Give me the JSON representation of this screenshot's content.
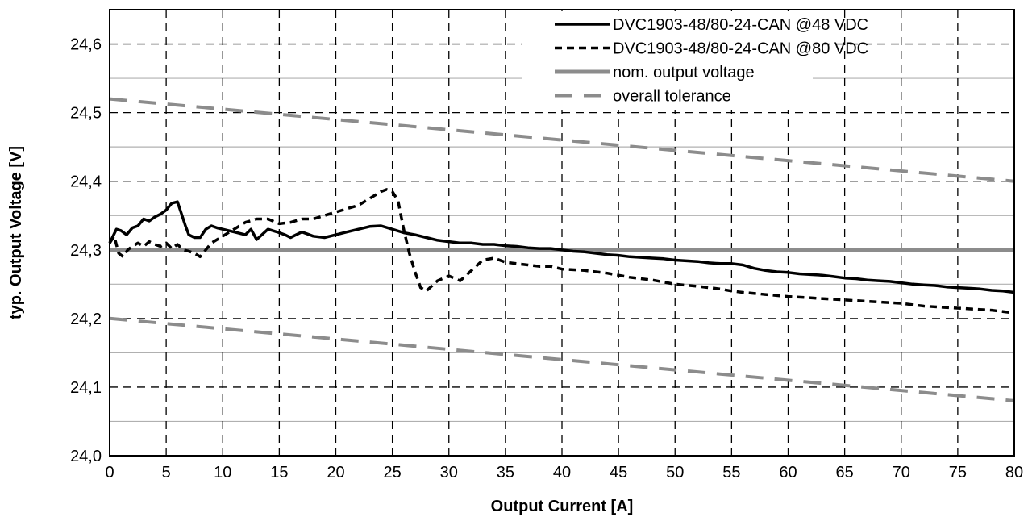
{
  "chart_data": {
    "type": "line",
    "xlabel": "Output Current [A]",
    "ylabel": "typ. Output Voltage [V]",
    "xlim": [
      0,
      80
    ],
    "ylim": [
      24.0,
      24.65
    ],
    "x_ticks": [
      0,
      5,
      10,
      15,
      20,
      25,
      30,
      35,
      40,
      45,
      50,
      55,
      60,
      65,
      70,
      75,
      80
    ],
    "x_tick_labels": [
      "0",
      "5",
      "10",
      "15",
      "20",
      "25",
      "30",
      "35",
      "40",
      "45",
      "50",
      "55",
      "60",
      "65",
      "70",
      "75",
      "80"
    ],
    "y_ticks": [
      24.0,
      24.1,
      24.2,
      24.3,
      24.4,
      24.5,
      24.6
    ],
    "y_tick_labels": [
      "24,0",
      "24,1",
      "24,2",
      "24,3",
      "24,4",
      "24,5",
      "24,6"
    ],
    "grid": {
      "vertical": "dashed",
      "horizontal_major": "dashed",
      "horizontal_minor": "solid-light",
      "y_minor_step": 0.05
    },
    "legend_position": "top-right",
    "series": [
      {
        "name": "DVC1903-48/80-24-CAN @48 VDC",
        "style": "solid",
        "color": "#000000",
        "x": [
          0,
          0.3,
          0.6,
          1,
          1.5,
          2,
          2.5,
          3,
          3.5,
          4,
          4.5,
          5,
          5.5,
          6,
          6.3,
          6.7,
          7,
          7.5,
          8,
          8.5,
          9,
          9.5,
          10,
          11,
          12,
          12.5,
          13,
          14,
          15,
          15.5,
          16,
          17,
          18,
          19,
          20,
          21,
          22,
          23,
          24,
          25,
          26,
          27,
          28,
          29,
          30,
          31,
          32,
          33,
          34,
          35,
          36,
          37,
          38,
          39,
          40,
          41,
          42,
          43,
          44,
          45,
          46,
          47,
          48,
          49,
          50,
          51,
          52,
          53,
          54,
          55,
          56,
          57,
          58,
          59,
          60,
          61,
          62,
          63,
          64,
          65,
          66,
          67,
          68,
          69,
          70,
          71,
          72,
          73,
          74,
          75,
          76,
          77,
          78,
          79,
          80
        ],
        "y": [
          24.31,
          24.32,
          24.33,
          24.328,
          24.322,
          24.332,
          24.335,
          24.345,
          24.342,
          24.348,
          24.352,
          24.358,
          24.368,
          24.37,
          24.355,
          24.335,
          24.322,
          24.318,
          24.318,
          24.33,
          24.335,
          24.332,
          24.33,
          24.326,
          24.322,
          24.33,
          24.315,
          24.33,
          24.325,
          24.322,
          24.318,
          24.326,
          24.32,
          24.318,
          24.322,
          24.326,
          24.33,
          24.334,
          24.335,
          24.33,
          24.325,
          24.322,
          24.318,
          24.314,
          24.312,
          24.31,
          24.31,
          24.308,
          24.308,
          24.306,
          24.305,
          24.303,
          24.302,
          24.302,
          24.3,
          24.298,
          24.297,
          24.295,
          24.293,
          24.292,
          24.29,
          24.289,
          24.288,
          24.287,
          24.285,
          24.284,
          24.283,
          24.281,
          24.28,
          24.28,
          24.278,
          24.273,
          24.27,
          24.268,
          24.267,
          24.265,
          24.264,
          24.263,
          24.261,
          24.259,
          24.258,
          24.256,
          24.255,
          24.254,
          24.252,
          24.25,
          24.249,
          24.248,
          24.246,
          24.245,
          24.244,
          24.243,
          24.241,
          24.24,
          24.238
        ]
      },
      {
        "name": "DVC1903-48/80-24-CAN @80 VDC",
        "style": "dashed",
        "color": "#000000",
        "x": [
          0,
          0.4,
          0.8,
          1.2,
          1.6,
          2,
          2.5,
          3,
          3.5,
          4,
          4.5,
          5,
          5.5,
          6,
          6.5,
          7,
          7.5,
          8,
          8.5,
          9,
          10,
          11,
          12,
          13,
          14,
          15,
          16,
          17,
          18,
          19,
          20,
          21,
          22,
          23,
          24,
          24.5,
          25,
          25.5,
          26,
          26.5,
          27,
          27.5,
          28,
          29,
          30,
          31,
          32,
          33,
          34,
          35,
          36,
          37,
          38,
          39,
          40,
          42,
          44,
          46,
          48,
          50,
          52,
          54,
          55,
          56,
          58,
          60,
          62,
          64,
          66,
          68,
          70,
          72,
          74,
          76,
          78,
          80
        ],
        "y": [
          24.31,
          24.32,
          24.295,
          24.29,
          24.3,
          24.305,
          24.31,
          24.305,
          24.312,
          24.308,
          24.305,
          24.31,
          24.302,
          24.308,
          24.3,
          24.298,
          24.295,
          24.29,
          24.3,
          24.31,
          24.32,
          24.33,
          24.34,
          24.345,
          24.345,
          24.338,
          24.34,
          24.345,
          24.345,
          24.35,
          24.355,
          24.36,
          24.365,
          24.375,
          24.385,
          24.388,
          24.385,
          24.372,
          24.33,
          24.295,
          24.268,
          24.245,
          24.24,
          24.255,
          24.262,
          24.255,
          24.27,
          24.285,
          24.288,
          24.282,
          24.28,
          24.278,
          24.276,
          24.276,
          24.272,
          24.27,
          24.266,
          24.26,
          24.256,
          24.25,
          24.247,
          24.243,
          24.24,
          24.238,
          24.235,
          24.232,
          24.23,
          24.228,
          24.226,
          24.224,
          24.222,
          24.218,
          24.216,
          24.214,
          24.212,
          24.208
        ]
      },
      {
        "name": "nom. output voltage",
        "style": "solid-thick",
        "color": "#8c8c8c",
        "x": [
          0,
          80
        ],
        "y": [
          24.3,
          24.3
        ]
      },
      {
        "name": "overall tolerance",
        "style": "dashed-thick",
        "color": "#8c8c8c",
        "x": [
          0,
          80
        ],
        "y": [
          24.52,
          24.4
        ]
      },
      {
        "name": "",
        "style": "dashed-thick",
        "color": "#8c8c8c",
        "x": [
          0,
          80
        ],
        "y": [
          24.2,
          24.08
        ]
      }
    ]
  }
}
